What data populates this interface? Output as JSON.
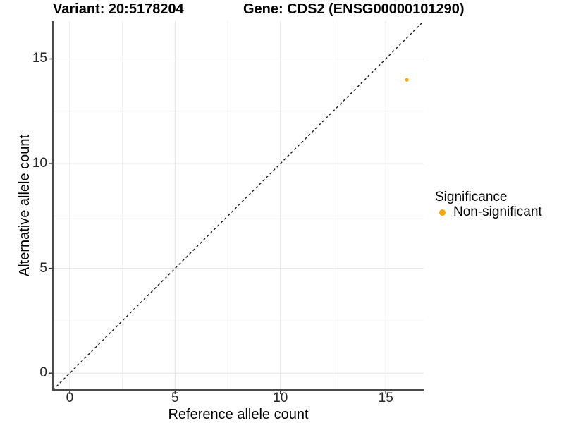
{
  "header": {
    "title_left": "Variant: 20:5178204",
    "title_right": "Gene: CDS2 (ENSG00000101290)"
  },
  "chart_data": {
    "type": "scatter",
    "title": "Variant: 20:5178204    Gene: CDS2 (ENSG00000101290)",
    "xlabel": "Reference allele count",
    "ylabel": "Alternative allele count",
    "xlim": [
      -0.8,
      16.8
    ],
    "ylim": [
      -0.8,
      16.8
    ],
    "xticks": [
      0,
      5,
      10,
      15
    ],
    "yticks": [
      0,
      5,
      10,
      15
    ],
    "xtick_labels": [
      "0",
      "5",
      "10",
      "15"
    ],
    "ytick_labels": [
      "0",
      "5",
      "10",
      "15"
    ],
    "xticks_minor": [
      2.5,
      7.5,
      12.5
    ],
    "yticks_minor": [
      2.5,
      7.5,
      12.5
    ],
    "grid": "major+minor",
    "series": [
      {
        "name": "Non-significant",
        "color": "#FFA500",
        "point_radius": 2.6,
        "points": [
          [
            16,
            14
          ]
        ]
      }
    ],
    "reference_line": {
      "kind": "identity",
      "from": [
        -0.8,
        -0.8
      ],
      "to": [
        16.8,
        16.8
      ],
      "dash": "3.5 3.5",
      "width": 1.4,
      "color": "#1a1a1a"
    },
    "legend": {
      "title": "Significance",
      "position": "right",
      "entries": [
        {
          "label": "Non-significant",
          "color": "#FFA500"
        }
      ]
    }
  },
  "colors": {
    "grid_major": "#e4e4e4",
    "grid_minor": "#f1f1f1",
    "axis_line": "#4a4a4a",
    "tick": "#333333"
  }
}
